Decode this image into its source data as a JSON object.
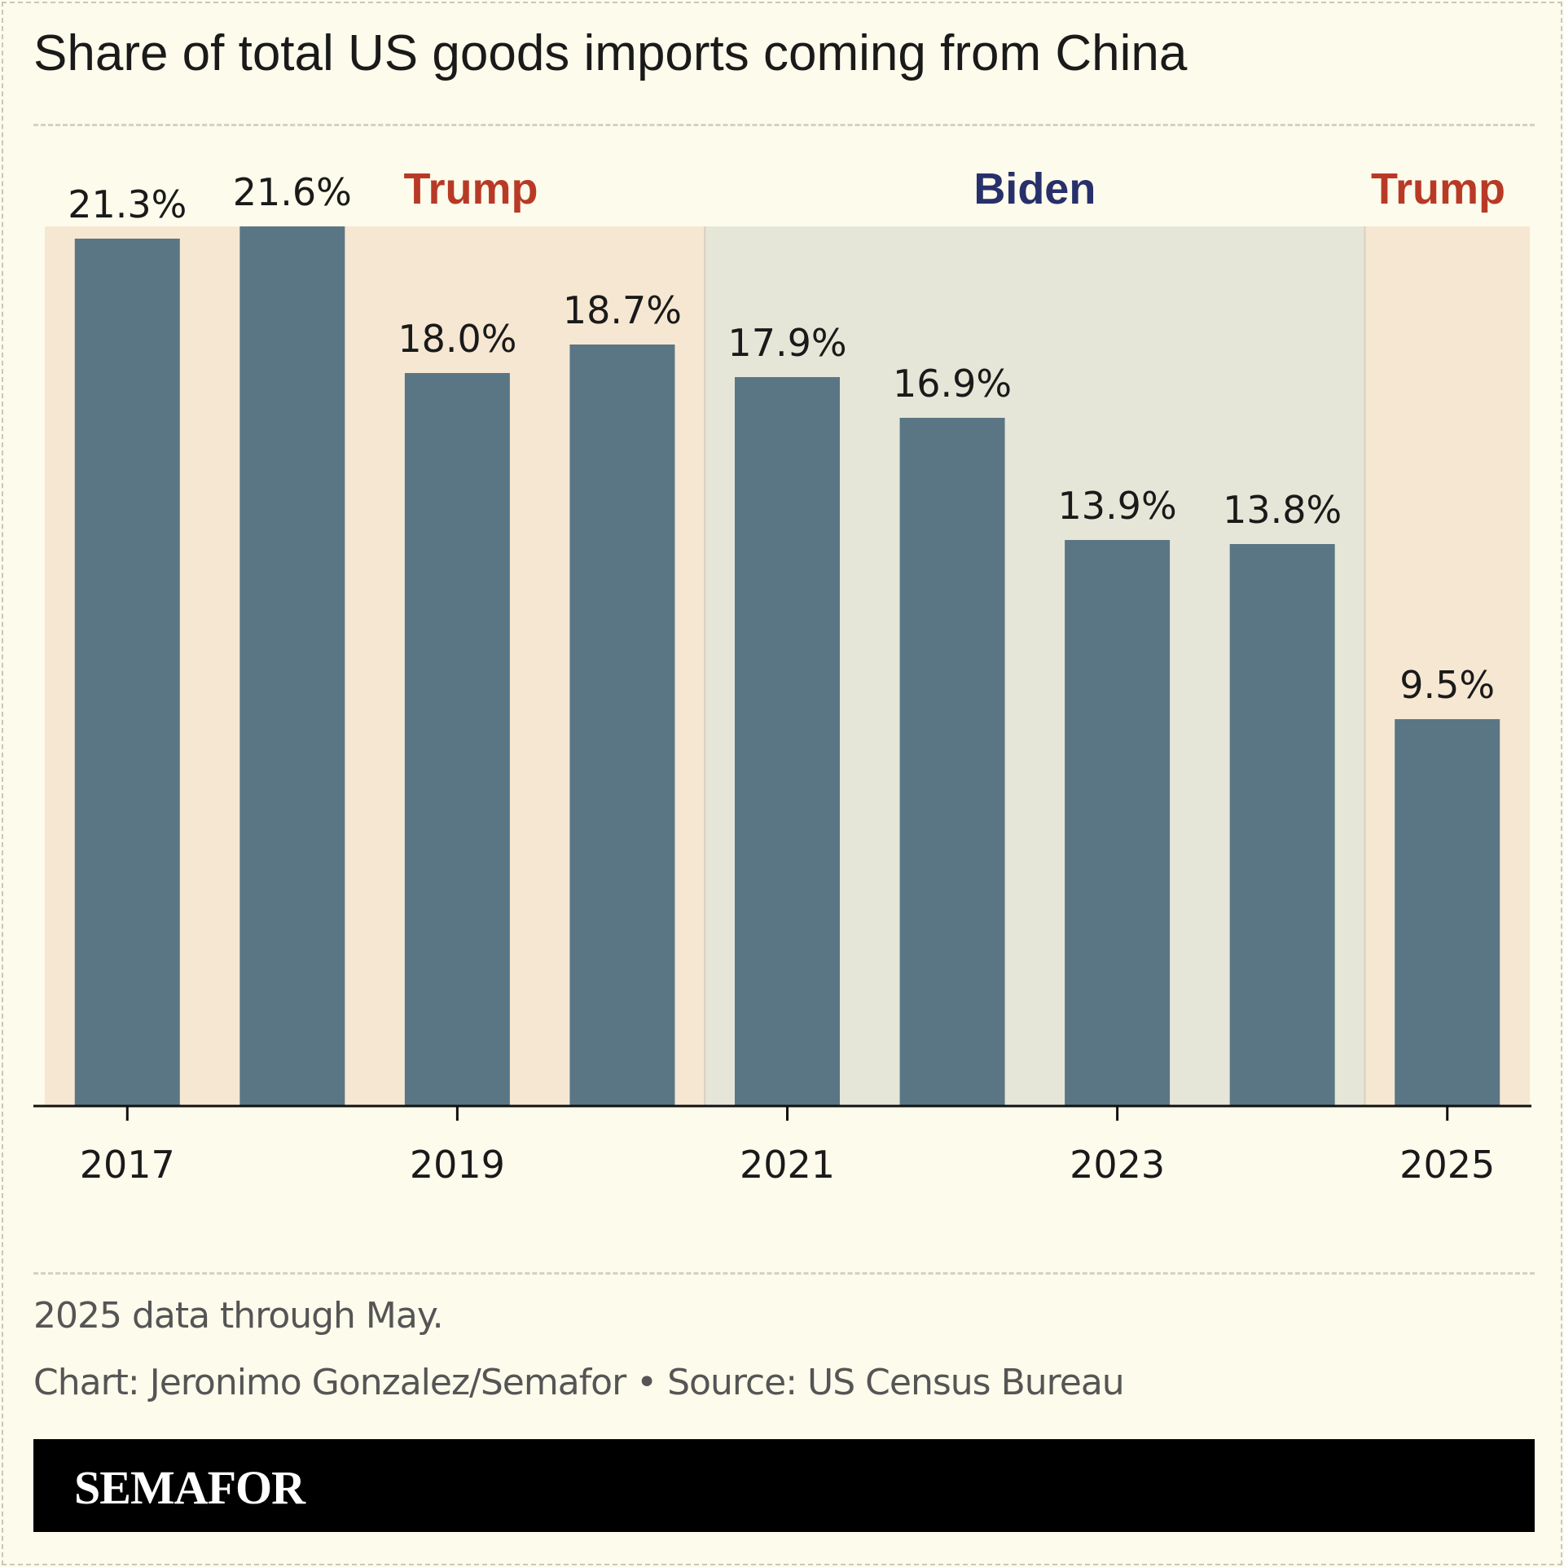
{
  "title": "Share of total US goods imports coming from China",
  "notes": {
    "data_note": "2025 data through May.",
    "credit": "Chart: Jeronimo Gonzalez/Semafor • Source: US Census Bureau"
  },
  "brand": "SEMAFOR",
  "colors": {
    "background": "#fdfbeb",
    "bar": "#5a7685",
    "trump_band": "#f6e7d2",
    "biden_band": "#e6e6d8",
    "trump_label": "#b83a26",
    "biden_label": "#27306b"
  },
  "chart_data": {
    "type": "bar",
    "title": "Share of total US goods imports coming from China",
    "categories": [
      "2017",
      "2018",
      "2019",
      "2020",
      "2021",
      "2022",
      "2023",
      "2024",
      "2025"
    ],
    "values": [
      21.3,
      21.6,
      18.0,
      18.7,
      17.9,
      16.9,
      13.9,
      13.8,
      9.5
    ],
    "value_labels": [
      "21.3%",
      "21.6%",
      "18.0%",
      "18.7%",
      "17.9%",
      "16.9%",
      "13.9%",
      "13.8%",
      "9.5%"
    ],
    "x_tick_labels": [
      "2017",
      "2019",
      "2021",
      "2023",
      "2025"
    ],
    "ylim": [
      0,
      21.6
    ],
    "grid": false,
    "legend": "none",
    "periods": [
      {
        "label": "Trump",
        "from": "2017",
        "to": "2020",
        "party": "trump"
      },
      {
        "label": "Biden",
        "from": "2021",
        "to": "2024",
        "party": "biden"
      },
      {
        "label": "Trump",
        "from": "2025",
        "to": "2025",
        "party": "trump"
      }
    ]
  }
}
